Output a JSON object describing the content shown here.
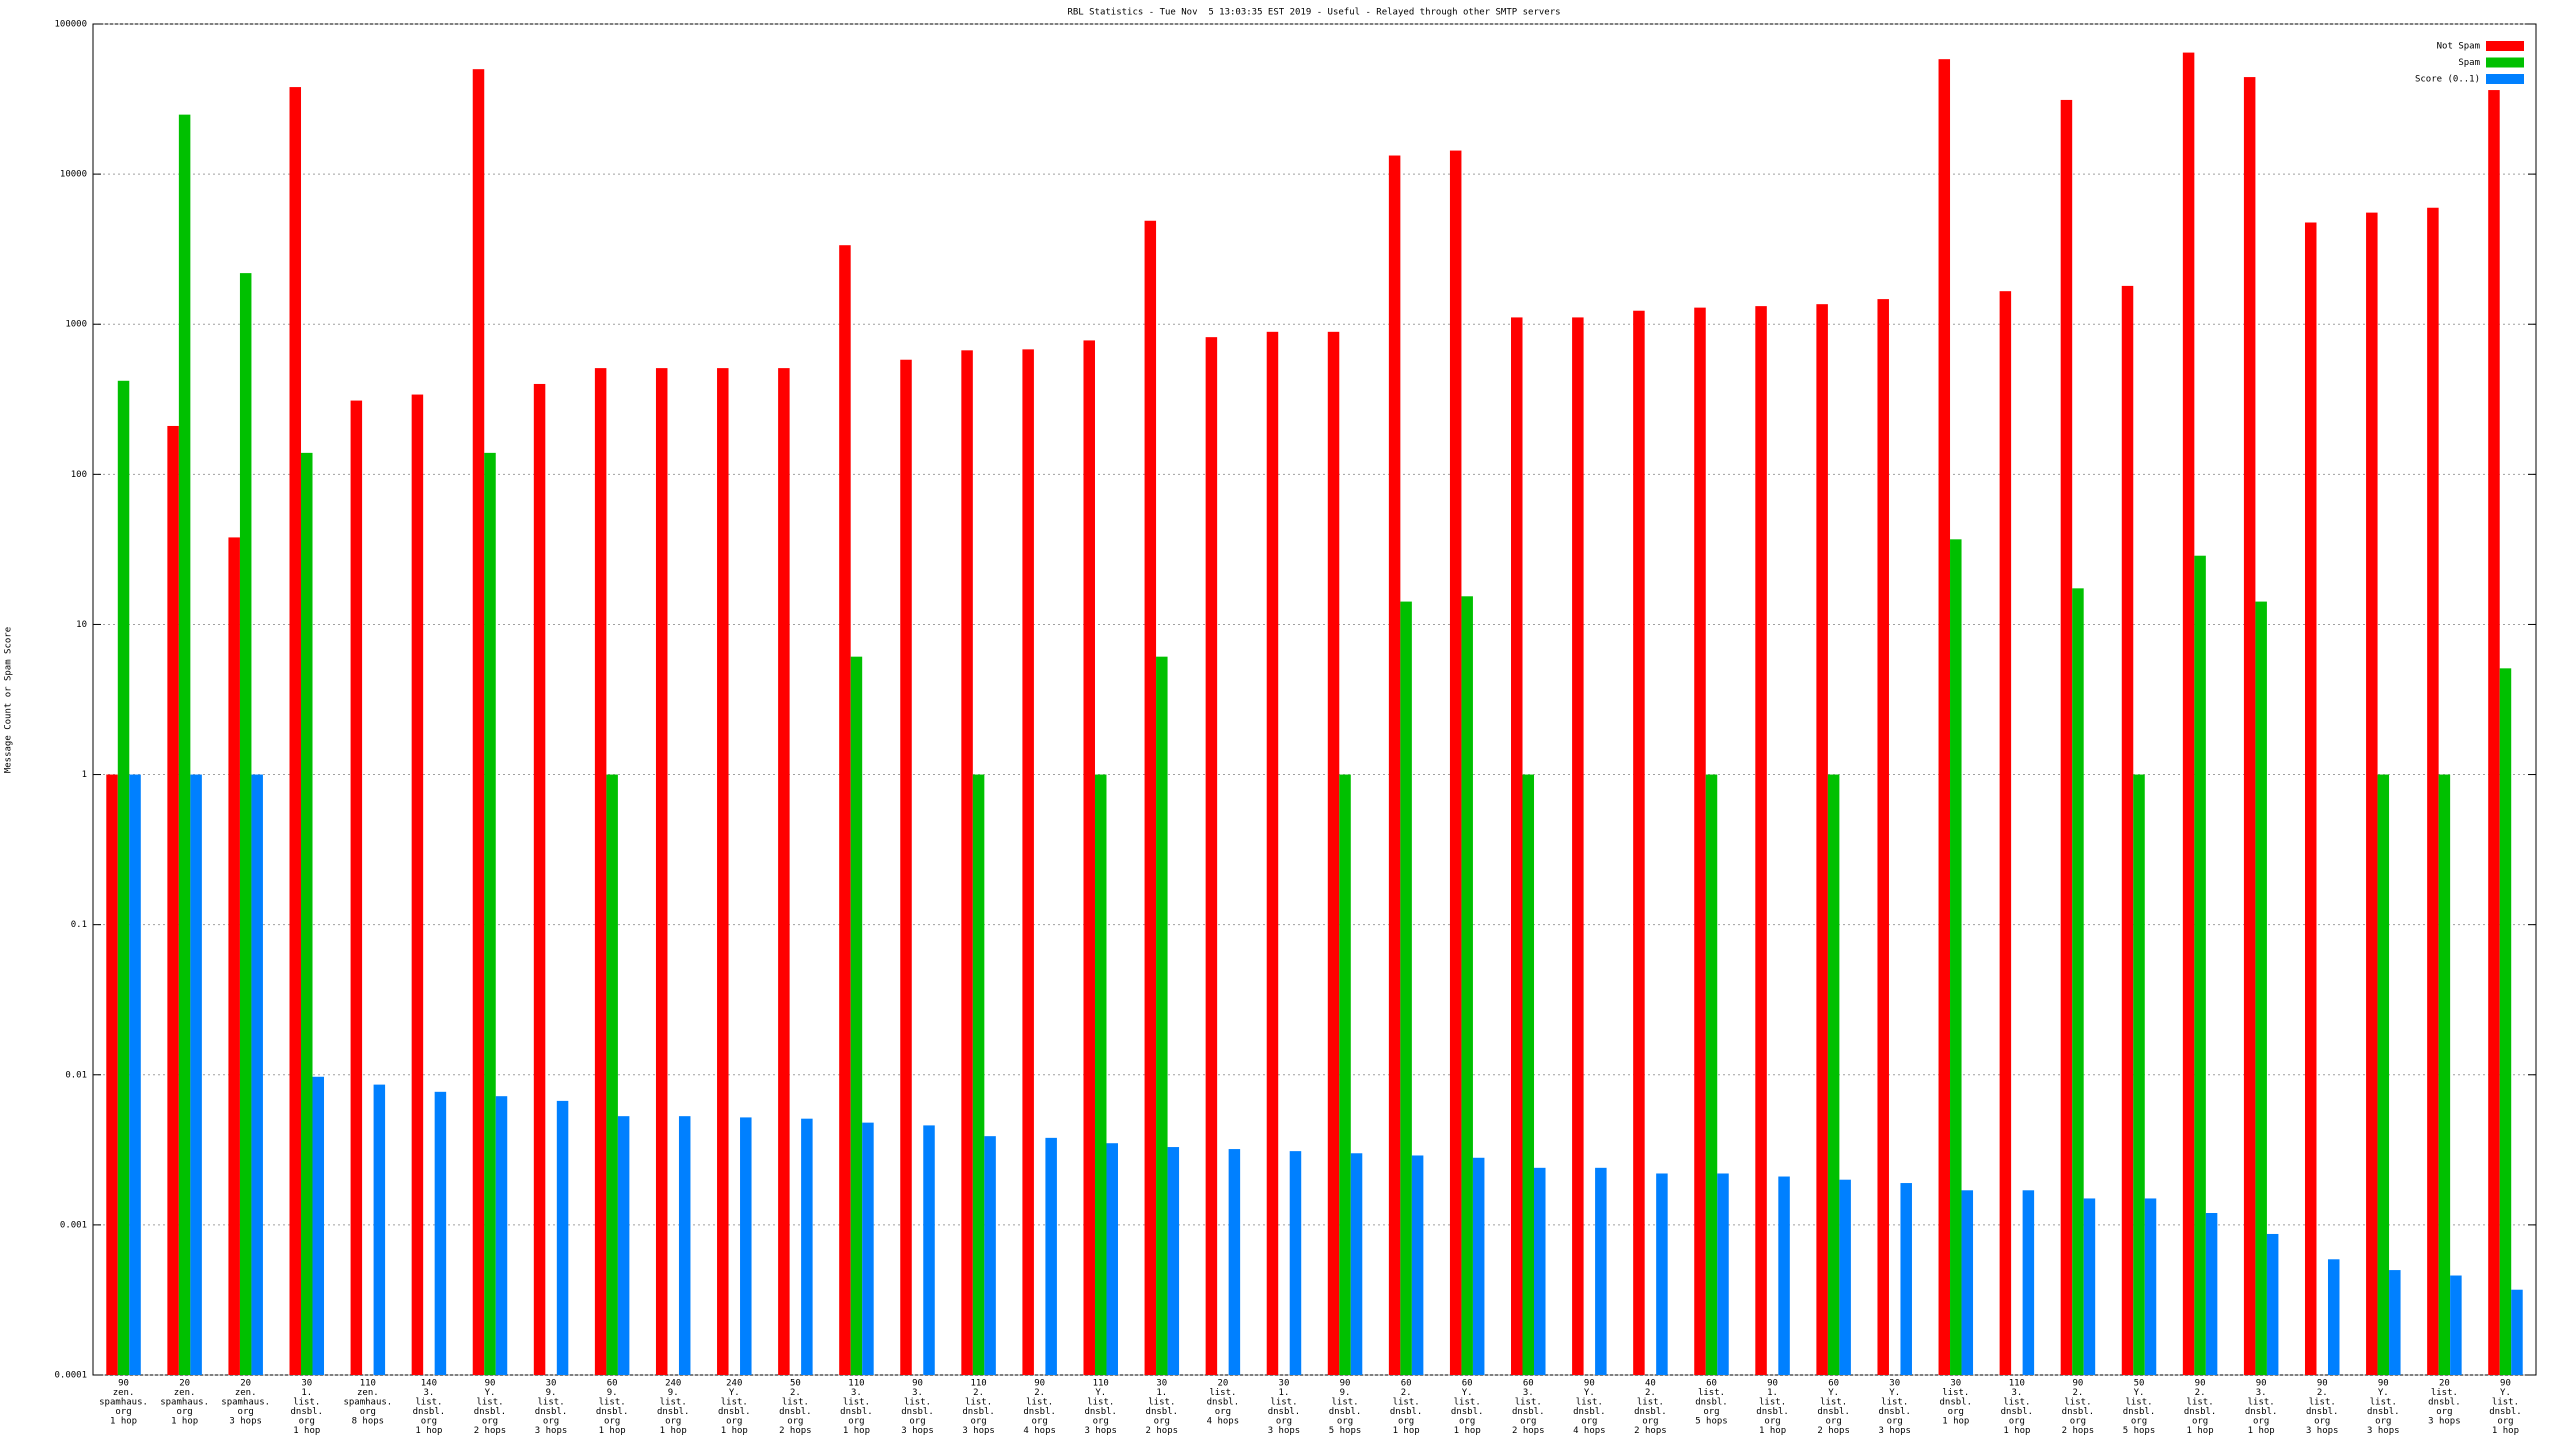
{
  "chart_data": {
    "type": "bar",
    "title": "RBL Statistics - Tue Nov  5 13:03:35 EST 2019 - Useful - Relayed through other SMTP servers",
    "y_label": "Message Count or Spam Score",
    "log_scale": true,
    "grid": true,
    "legend": "top-right",
    "ylim": [
      0.0001,
      100000
    ],
    "yticks": [
      0.0001,
      0.001,
      0.01,
      0.1,
      1,
      10,
      100,
      1000,
      10000,
      100000
    ],
    "categories": [
      [
        "90",
        "zen.",
        "spamhaus.",
        "org",
        "1 hop"
      ],
      [
        "20",
        "zen.",
        "spamhaus.",
        "org",
        "1 hop"
      ],
      [
        "20",
        "zen.",
        "spamhaus.",
        "org",
        "3 hops"
      ],
      [
        "30",
        "1.",
        "list.",
        "dnsbl.",
        "org",
        "1 hop"
      ],
      [
        "110",
        "zen.",
        "spamhaus.",
        "org",
        "8 hops"
      ],
      [
        "140",
        "3.",
        "list.",
        "dnsbl.",
        "org",
        "1 hop"
      ],
      [
        "90",
        "Y.",
        "list.",
        "dnsbl.",
        "org",
        "2 hops"
      ],
      [
        "30",
        "9.",
        "list.",
        "dnsbl.",
        "org",
        "3 hops"
      ],
      [
        "60",
        "9.",
        "list.",
        "dnsbl.",
        "org",
        "1 hop"
      ],
      [
        "240",
        "9.",
        "list.",
        "dnsbl.",
        "org",
        "1 hop"
      ],
      [
        "240",
        "Y.",
        "list.",
        "dnsbl.",
        "org",
        "1 hop"
      ],
      [
        "50",
        "2.",
        "list.",
        "dnsbl.",
        "org",
        "2 hops"
      ],
      [
        "110",
        "3.",
        "list.",
        "dnsbl.",
        "org",
        "1 hop"
      ],
      [
        "90",
        "3.",
        "list.",
        "dnsbl.",
        "org",
        "3 hops"
      ],
      [
        "110",
        "2.",
        "list.",
        "dnsbl.",
        "org",
        "3 hops"
      ],
      [
        "90",
        "2.",
        "list.",
        "dnsbl.",
        "org",
        "4 hops"
      ],
      [
        "110",
        "Y.",
        "list.",
        "dnsbl.",
        "org",
        "3 hops"
      ],
      [
        "30",
        "1.",
        "list.",
        "dnsbl.",
        "org",
        "2 hops"
      ],
      [
        "20",
        "list.",
        "dnsbl.",
        "org",
        "4 hops"
      ],
      [
        "30",
        "1.",
        "list.",
        "dnsbl.",
        "org",
        "3 hops"
      ],
      [
        "90",
        "9.",
        "list.",
        "dnsbl.",
        "org",
        "5 hops"
      ],
      [
        "60",
        "2.",
        "list.",
        "dnsbl.",
        "org",
        "1 hop"
      ],
      [
        "60",
        "Y.",
        "list.",
        "dnsbl.",
        "org",
        "1 hop"
      ],
      [
        "60",
        "3.",
        "list.",
        "dnsbl.",
        "org",
        "2 hops"
      ],
      [
        "90",
        "Y.",
        "list.",
        "dnsbl.",
        "org",
        "4 hops"
      ],
      [
        "40",
        "2.",
        "list.",
        "dnsbl.",
        "org",
        "2 hops"
      ],
      [
        "60",
        "list.",
        "dnsbl.",
        "org",
        "5 hops"
      ],
      [
        "90",
        "1.",
        "list.",
        "dnsbl.",
        "org",
        "1 hop"
      ],
      [
        "60",
        "Y.",
        "list.",
        "dnsbl.",
        "org",
        "2 hops"
      ],
      [
        "30",
        "Y.",
        "list.",
        "dnsbl.",
        "org",
        "3 hops"
      ],
      [
        "30",
        "list.",
        "dnsbl.",
        "org",
        "1 hop"
      ],
      [
        "110",
        "3.",
        "list.",
        "dnsbl.",
        "org",
        "1 hop"
      ],
      [
        "90",
        "2.",
        "list.",
        "dnsbl.",
        "org",
        "2 hops"
      ],
      [
        "50",
        "Y.",
        "list.",
        "dnsbl.",
        "org",
        "5 hops"
      ],
      [
        "90",
        "2.",
        "list.",
        "dnsbl.",
        "org",
        "1 hop"
      ],
      [
        "90",
        "3.",
        "list.",
        "dnsbl.",
        "org",
        "1 hop"
      ],
      [
        "90",
        "2.",
        "list.",
        "dnsbl.",
        "org",
        "3 hops"
      ],
      [
        "90",
        "Y.",
        "list.",
        "dnsbl.",
        "org",
        "3 hops"
      ],
      [
        "20",
        "list.",
        "dnsbl.",
        "org",
        "3 hops"
      ],
      [
        "90",
        "Y.",
        "list.",
        "dnsbl.",
        "org",
        "1 hop"
      ]
    ],
    "series": [
      {
        "name": "Not Spam",
        "color": "#ff0000",
        "values": [
          1,
          210,
          38,
          38000,
          310,
          340,
          50000,
          400,
          510,
          510,
          510,
          510,
          3360,
          580,
          670,
          680,
          780,
          4890,
          820,
          890,
          890,
          13300,
          14350,
          1110,
          1110,
          1230,
          1290,
          1320,
          1360,
          1470,
          58300,
          1660,
          31200,
          1800,
          64500,
          44300,
          4760,
          5540,
          5970,
          36300
        ]
      },
      {
        "name": "Spam",
        "color": "#00c000",
        "values": [
          420,
          24900,
          2190,
          139,
          null,
          null,
          139,
          null,
          1,
          null,
          null,
          null,
          6.1,
          null,
          1,
          null,
          1,
          6.1,
          null,
          null,
          1,
          14.2,
          15.4,
          1,
          null,
          null,
          1,
          null,
          1,
          null,
          36.9,
          null,
          17.4,
          1,
          28.7,
          14.2,
          null,
          1,
          1,
          5.1
        ]
      },
      {
        "name": "Score (0..1)",
        "color": "#0080ff",
        "values": [
          1,
          1,
          1,
          0.0097,
          0.0086,
          0.0077,
          0.0072,
          0.0067,
          0.0053,
          0.0053,
          0.0052,
          0.0051,
          0.0048,
          0.0046,
          0.0039,
          0.0038,
          0.0035,
          0.0033,
          0.0032,
          0.0031,
          0.003,
          0.0029,
          0.0028,
          0.0024,
          0.0024,
          0.0022,
          0.0022,
          0.0021,
          0.002,
          0.0019,
          0.0017,
          0.0017,
          0.0015,
          0.0015,
          0.0012,
          0.00087,
          0.00059,
          0.0005,
          0.00046,
          0.00037
        ]
      }
    ]
  }
}
